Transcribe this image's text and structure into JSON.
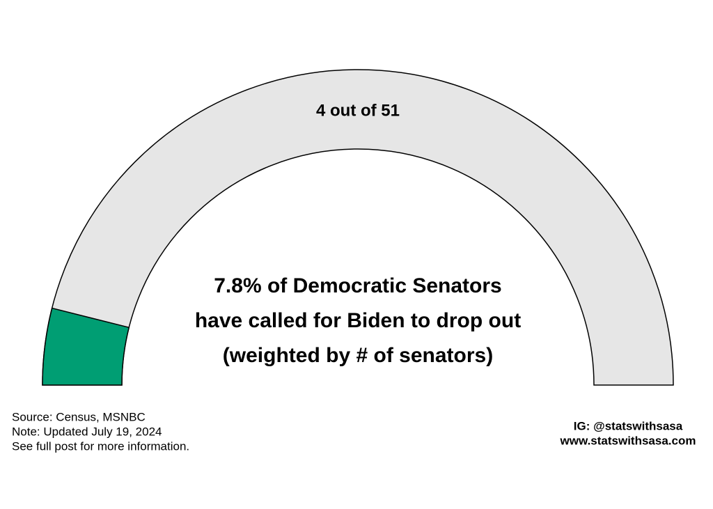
{
  "chart_data": {
    "type": "gauge",
    "values": [
      4
    ],
    "value_labels": [
      "4 out of 51"
    ],
    "range": [
      0,
      51
    ],
    "color": "#009e73",
    "track_color": "#e6e6e6",
    "title_lines": [
      "7.8% of Democratic Senators",
      "have called for Biden to drop out",
      "(weighted by # of senators)"
    ]
  },
  "footer": {
    "source_lines": [
      "Source: Census, MSNBC",
      "Note: Updated July 19, 2024",
      "See full post for more information."
    ],
    "credit_lines": [
      "IG: @statswithsasa",
      "www.statswithsasa.com"
    ]
  }
}
